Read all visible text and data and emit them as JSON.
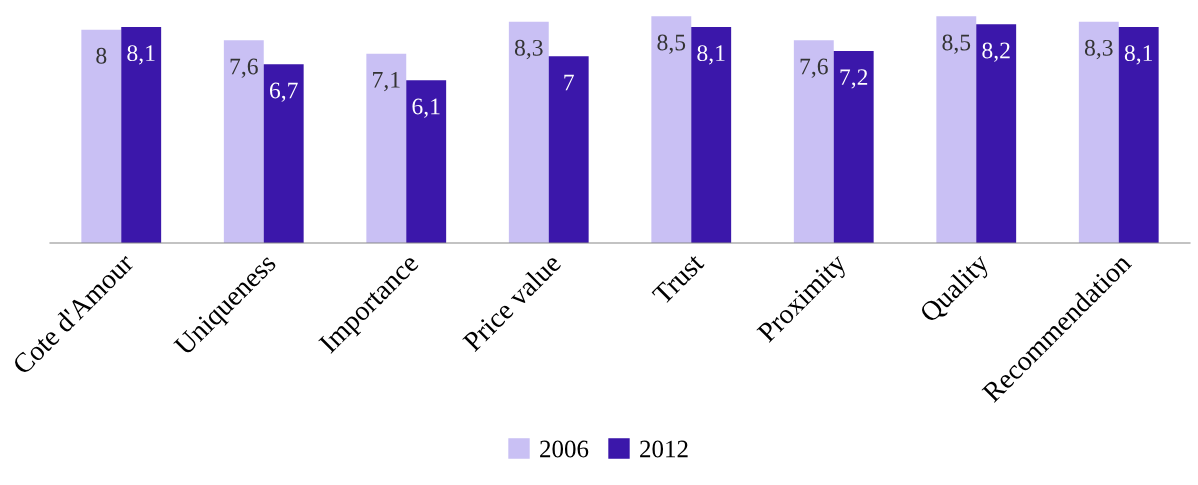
{
  "chart_data": {
    "type": "bar",
    "categories": [
      "Cote d'Amour",
      "Uniqueness",
      "Importance",
      "Price value",
      "Trust",
      "Proximity",
      "Quality",
      "Recommendation"
    ],
    "series": [
      {
        "name": "2006",
        "color": "#c9c0f4",
        "values": [
          8,
          7.6,
          7.1,
          8.3,
          8.5,
          7.6,
          8.5,
          8.3
        ],
        "value_labels": [
          "8",
          "7,6",
          "7,1",
          "8,3",
          "8,5",
          "7,6",
          "8,5",
          "8,3"
        ]
      },
      {
        "name": "2012",
        "color": "#3b17aa",
        "values": [
          8.1,
          6.7,
          6.1,
          7,
          8.1,
          7.2,
          8.2,
          8.1
        ],
        "value_labels": [
          "8,1",
          "6,7",
          "6,1",
          "7",
          "8,1",
          "7,2",
          "8,2",
          "8,1"
        ]
      }
    ],
    "tick_labels": "x",
    "grid": false,
    "legend": "bottom"
  }
}
